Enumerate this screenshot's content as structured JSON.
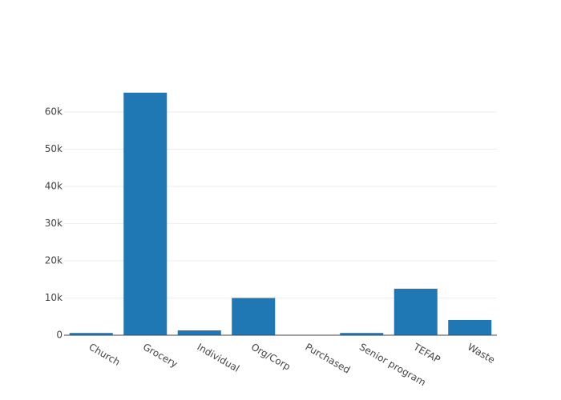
{
  "chart_data": {
    "type": "bar",
    "categories": [
      "Church",
      "Grocery",
      "Individual",
      "Org/Corp",
      "Purchased",
      "Senior program",
      "TEFAP",
      "Waste"
    ],
    "values": [
      600,
      65200,
      1300,
      10000,
      100,
      600,
      12500,
      4100
    ],
    "color": "#1f77b4",
    "ylim": [
      0,
      68600
    ],
    "yticks": [
      0,
      {
        "value": 10000,
        "label": "10k"
      },
      {
        "value": 20000,
        "label": "20k"
      },
      {
        "value": 30000,
        "label": "30k"
      },
      {
        "value": 40000,
        "label": "40k"
      },
      {
        "value": 50000,
        "label": "50k"
      },
      {
        "value": 60000,
        "label": "60k"
      }
    ],
    "grid": true
  }
}
